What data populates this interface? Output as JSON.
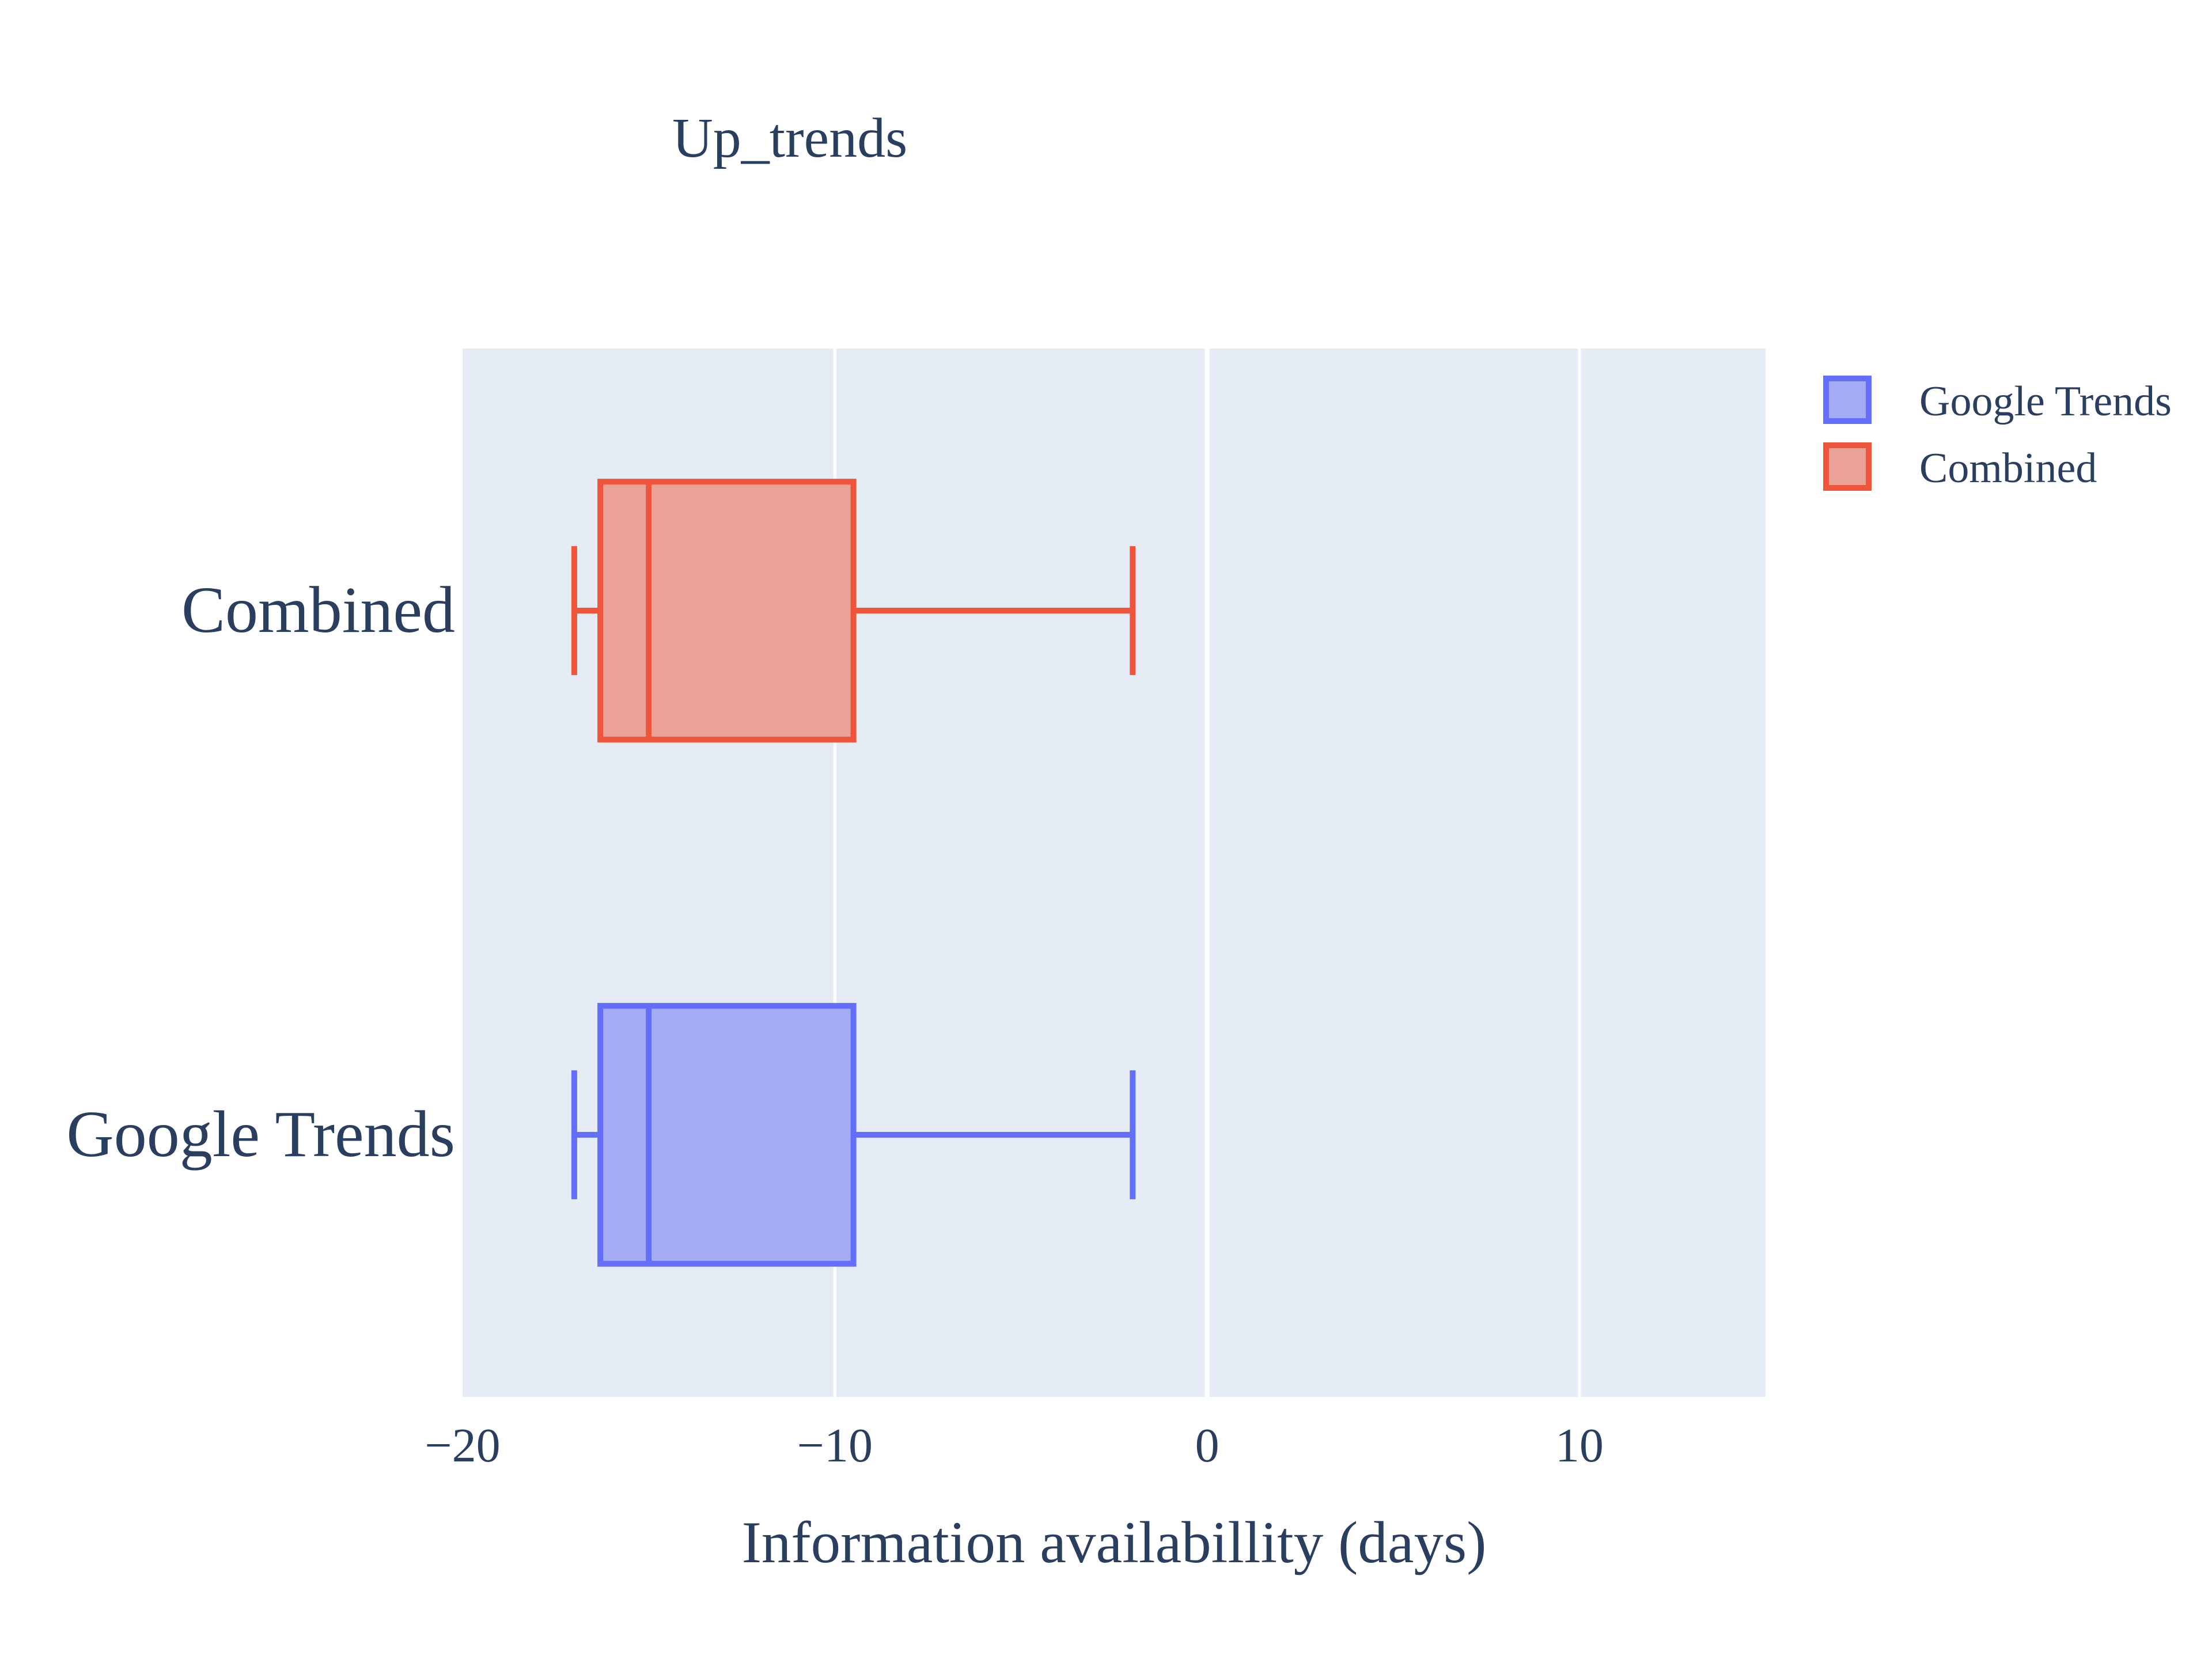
{
  "chart_data": {
    "type": "box",
    "orientation": "horizontal",
    "title": "Up_trends",
    "xlabel": "Information availabillity (days)",
    "ylabel": "",
    "xlim": [
      -20,
      15
    ],
    "xticks": [
      -20,
      -10,
      0,
      10
    ],
    "xtick_labels": [
      "−20",
      "−10",
      "0",
      "10"
    ],
    "grid": true,
    "legend_position": "top-right",
    "categories": [
      "Google Trends",
      "Combined"
    ],
    "series": [
      {
        "name": "Google Trends",
        "category": "Google Trends",
        "min": -17,
        "q1": -16.3,
        "median": -15,
        "q3": -9.5,
        "max": -2,
        "line_color": "#636efa",
        "fill_color": "#a3acf5"
      },
      {
        "name": "Combined",
        "category": "Combined",
        "min": -17,
        "q1": -16.3,
        "median": -15,
        "q3": -9.5,
        "max": -2,
        "line_color": "#ef553b",
        "fill_color": "#eba398"
      }
    ],
    "colors": {
      "plot_background": "#e5ecf6",
      "grid": "#ffffff",
      "text": "#2a3f5f"
    }
  }
}
